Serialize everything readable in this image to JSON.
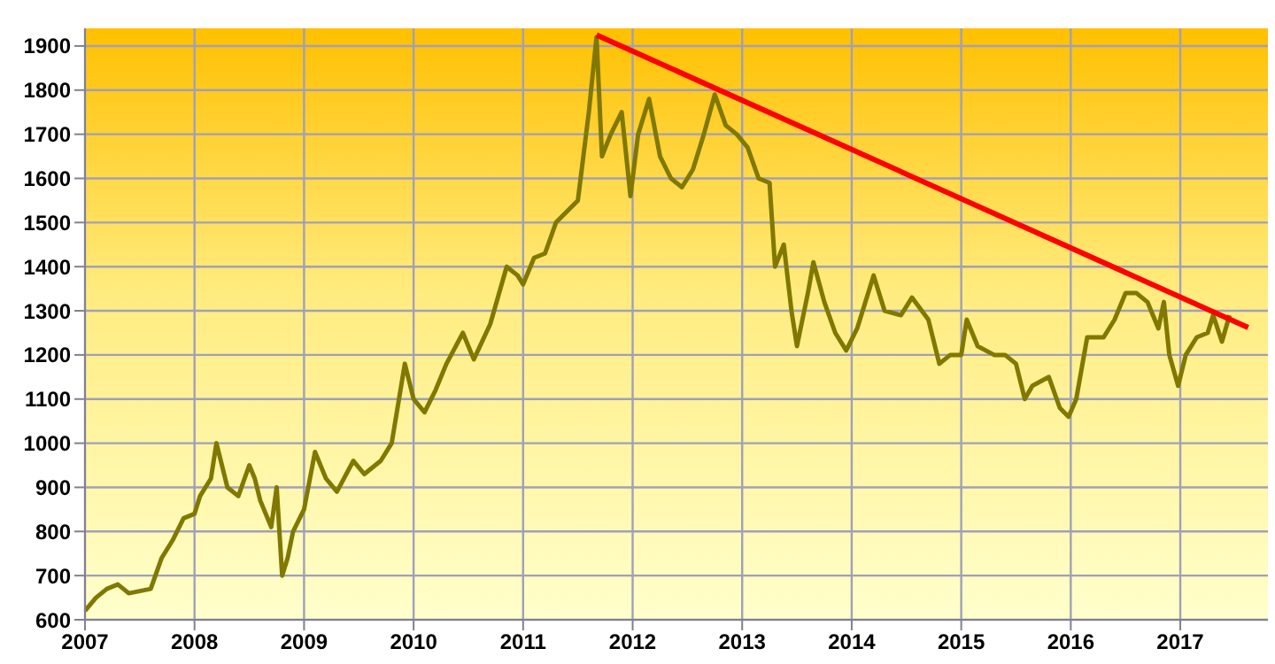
{
  "chart_data": {
    "type": "line",
    "grid": true,
    "marker": "none",
    "xlim": [
      2007,
      2017.8
    ],
    "xticks": [
      2007,
      2008,
      2009,
      2010,
      2011,
      2012,
      2013,
      2014,
      2015,
      2016,
      2017
    ],
    "ylim": [
      600,
      1940
    ],
    "yticks": [
      600,
      700,
      800,
      900,
      1000,
      1100,
      1200,
      1300,
      1400,
      1500,
      1600,
      1700,
      1800,
      1900
    ],
    "x": [
      2007.0,
      2007.1,
      2007.2,
      2007.3,
      2007.4,
      2007.5,
      2007.6,
      2007.7,
      2007.8,
      2007.9,
      2008.0,
      2008.05,
      2008.15,
      2008.2,
      2008.3,
      2008.4,
      2008.5,
      2008.55,
      2008.6,
      2008.7,
      2008.75,
      2008.8,
      2008.85,
      2008.9,
      2009.0,
      2009.1,
      2009.2,
      2009.3,
      2009.45,
      2009.55,
      2009.7,
      2009.8,
      2009.92,
      2010.0,
      2010.1,
      2010.2,
      2010.3,
      2010.45,
      2010.55,
      2010.7,
      2010.85,
      2010.95,
      2011.0,
      2011.1,
      2011.2,
      2011.3,
      2011.5,
      2011.6,
      2011.67,
      2011.72,
      2011.8,
      2011.9,
      2011.98,
      2012.05,
      2012.15,
      2012.25,
      2012.35,
      2012.45,
      2012.55,
      2012.65,
      2012.75,
      2012.85,
      2012.95,
      2013.05,
      2013.15,
      2013.25,
      2013.3,
      2013.38,
      2013.45,
      2013.5,
      2013.6,
      2013.65,
      2013.75,
      2013.85,
      2013.95,
      2014.05,
      2014.2,
      2014.3,
      2014.45,
      2014.55,
      2014.7,
      2014.8,
      2014.9,
      2015.0,
      2015.05,
      2015.15,
      2015.3,
      2015.4,
      2015.5,
      2015.58,
      2015.65,
      2015.8,
      2015.9,
      2015.98,
      2016.05,
      2016.15,
      2016.3,
      2016.4,
      2016.5,
      2016.6,
      2016.7,
      2016.8,
      2016.85,
      2016.9,
      2016.98,
      2017.05,
      2017.15,
      2017.25,
      2017.3,
      2017.38,
      2017.45
    ],
    "series": [
      {
        "color": "#807800",
        "values": [
          620,
          650,
          670,
          680,
          660,
          665,
          670,
          740,
          780,
          830,
          840,
          880,
          920,
          1000,
          900,
          880,
          950,
          920,
          870,
          810,
          900,
          700,
          740,
          800,
          850,
          980,
          920,
          890,
          960,
          930,
          960,
          1000,
          1180,
          1100,
          1070,
          1120,
          1180,
          1250,
          1190,
          1270,
          1400,
          1380,
          1360,
          1420,
          1430,
          1500,
          1550,
          1750,
          1920,
          1650,
          1700,
          1750,
          1560,
          1700,
          1780,
          1650,
          1600,
          1580,
          1620,
          1700,
          1790,
          1720,
          1700,
          1670,
          1600,
          1590,
          1400,
          1450,
          1300,
          1220,
          1340,
          1410,
          1320,
          1250,
          1210,
          1260,
          1380,
          1300,
          1290,
          1330,
          1280,
          1180,
          1200,
          1200,
          1280,
          1220,
          1200,
          1200,
          1180,
          1100,
          1130,
          1150,
          1080,
          1060,
          1100,
          1240,
          1240,
          1280,
          1340,
          1340,
          1320,
          1260,
          1320,
          1200,
          1130,
          1200,
          1240,
          1250,
          1290,
          1230,
          1290
        ]
      },
      {
        "color": "#ff0000",
        "x": [
          2011.67,
          2017.62
        ],
        "values": [
          1925,
          1262
        ]
      }
    ]
  }
}
